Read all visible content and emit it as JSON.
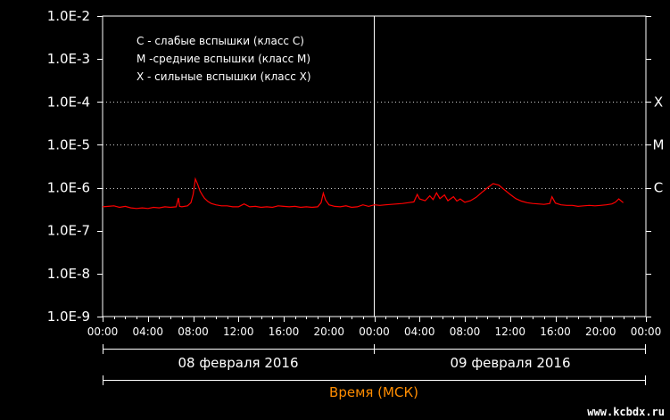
{
  "chart_data": {
    "type": "line",
    "title": "",
    "xlabel": "Время (МСК)",
    "ylabel": "",
    "y_scale": "log",
    "ylim": [
      1e-09,
      0.01
    ],
    "xlim_hours": [
      0,
      48
    ],
    "y_ticks": [
      "1.0E-2",
      "1.0E-3",
      "1.0E-4",
      "1.0E-5",
      "1.0E-6",
      "1.0E-7",
      "1.0E-8",
      "1.0E-9"
    ],
    "y_tick_values": [
      0.01,
      0.001,
      0.0001,
      1e-05,
      1e-06,
      1e-07,
      1e-08,
      1e-09
    ],
    "x_ticks": [
      "00:00",
      "04:00",
      "08:00",
      "12:00",
      "16:00",
      "20:00",
      "00:00",
      "04:00",
      "08:00",
      "12:00",
      "16:00",
      "20:00",
      "00:00"
    ],
    "days": [
      "08 февраля 2016",
      "09 февраля 2016"
    ],
    "legend": [
      "C - слабые вспышки (класс C)",
      "M -средние вспышки (класс M)",
      "X - сильные вспышки (класс X)"
    ],
    "thresholds": [
      {
        "label": "X",
        "value": 0.0001
      },
      {
        "label": "M",
        "value": 1e-05
      },
      {
        "label": "C",
        "value": 1e-06
      }
    ],
    "grid": false,
    "line_color": "#ff0000",
    "axis_color": "#ffffff",
    "xlabel_color": "#ff8c00",
    "series": [
      {
        "x": [
          0,
          0.5,
          1,
          1.5,
          2,
          2.5,
          3,
          3.5,
          4,
          4.5,
          5,
          5.5,
          6,
          6.5,
          6.7,
          6.8,
          7,
          7.5,
          7.8,
          8.0,
          8.2,
          8.4,
          8.6,
          8.8,
          9.0,
          9.3,
          9.6,
          10,
          10.5,
          11,
          11.5,
          12,
          12.5,
          13,
          13.5,
          14,
          14.5,
          15,
          15.5,
          16,
          16.5,
          17,
          17.5,
          18,
          18.5,
          19,
          19.3,
          19.5,
          19.7,
          20,
          20.5,
          21,
          21.5,
          22,
          22.5,
          23,
          23.5,
          24,
          24.5,
          25,
          25.5,
          26,
          26.5,
          27,
          27.5,
          27.8,
          28,
          28.5,
          28.9,
          29.2,
          29.5,
          29.8,
          30.2,
          30.5,
          31,
          31.3,
          31.6,
          32,
          32.5,
          33,
          33.5,
          34,
          34.5,
          35,
          35.5,
          36,
          36.5,
          37,
          37.5,
          38,
          38.5,
          39,
          39.5,
          39.7,
          40,
          40.5,
          41,
          41.5,
          42,
          42.5,
          43,
          43.5,
          44,
          44.5,
          45,
          45.3,
          45.6,
          46
        ],
        "y": [
          3.6e-07,
          3.7e-07,
          3.8e-07,
          3.5e-07,
          3.7e-07,
          3.4e-07,
          3.3e-07,
          3.4e-07,
          3.3e-07,
          3.5e-07,
          3.4e-07,
          3.6e-07,
          3.5e-07,
          3.6e-07,
          5.8e-07,
          3.7e-07,
          3.6e-07,
          3.8e-07,
          4.5e-07,
          7e-07,
          1.6e-06,
          1.2e-06,
          8.5e-07,
          6.8e-07,
          5.7e-07,
          4.8e-07,
          4.3e-07,
          4e-07,
          3.8e-07,
          3.8e-07,
          3.6e-07,
          3.6e-07,
          4.2e-07,
          3.6e-07,
          3.7e-07,
          3.5e-07,
          3.6e-07,
          3.5e-07,
          3.8e-07,
          3.7e-07,
          3.6e-07,
          3.7e-07,
          3.5e-07,
          3.6e-07,
          3.5e-07,
          3.6e-07,
          4.5e-07,
          7.5e-07,
          5.2e-07,
          4e-07,
          3.7e-07,
          3.6e-07,
          3.8e-07,
          3.5e-07,
          3.6e-07,
          4e-07,
          3.7e-07,
          4e-07,
          3.9e-07,
          4e-07,
          4.1e-07,
          4.2e-07,
          4.3e-07,
          4.5e-07,
          4.7e-07,
          7e-07,
          5.5e-07,
          5e-07,
          6.5e-07,
          5.3e-07,
          7.6e-07,
          5.6e-07,
          6.8e-07,
          5e-07,
          6.2e-07,
          4.9e-07,
          5.5e-07,
          4.6e-07,
          5e-07,
          6e-07,
          7.8e-07,
          1e-06,
          1.25e-06,
          1.15e-06,
          9e-07,
          7e-07,
          5.6e-07,
          4.9e-07,
          4.5e-07,
          4.3e-07,
          4.2e-07,
          4.1e-07,
          4.3e-07,
          6.2e-07,
          4.4e-07,
          4e-07,
          3.9e-07,
          3.9e-07,
          3.7e-07,
          3.8e-07,
          3.9e-07,
          3.8e-07,
          3.9e-07,
          4e-07,
          4.2e-07,
          4.6e-07,
          5.5e-07,
          4.5e-07
        ]
      }
    ]
  },
  "watermark": "www.kcbdx.ru"
}
